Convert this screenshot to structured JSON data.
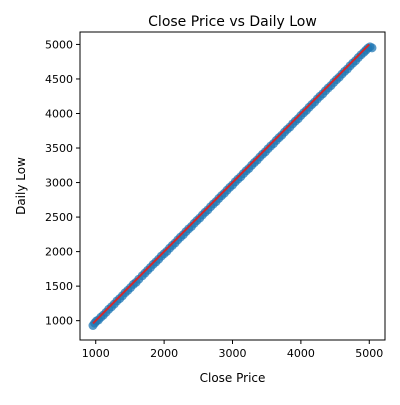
{
  "chart_data": {
    "type": "scatter",
    "title": "Close Price vs Daily Low",
    "xlabel": "Close Price",
    "ylabel": "Daily Low",
    "xlim": [
      770,
      5230
    ],
    "ylim": [
      720,
      5180
    ],
    "xticks": [
      1000,
      2000,
      3000,
      4000,
      5000
    ],
    "yticks": [
      1000,
      1500,
      2000,
      2500,
      3000,
      3500,
      4000,
      4500,
      5000
    ],
    "grid": false,
    "legend": "none",
    "series": [
      {
        "x": [
          960,
          985,
          1010,
          1040,
          1075,
          1110,
          1150,
          1190,
          1230,
          1270,
          1310,
          1350,
          1390,
          1430,
          1470,
          1510,
          1550,
          1590,
          1630,
          1680,
          1720,
          1760,
          1800,
          1840,
          1880,
          1920,
          1960,
          2000,
          2040,
          2080,
          2120,
          2160,
          2200,
          2240,
          2280,
          2320,
          2360,
          2400,
          2440,
          2480,
          2520,
          2560,
          2600,
          2640,
          2680,
          2720,
          2760,
          2800,
          2840,
          2880,
          2920,
          2960,
          3000,
          3040,
          3080,
          3120,
          3160,
          3200,
          3240,
          3280,
          3320,
          3360,
          3400,
          3440,
          3480,
          3520,
          3560,
          3600,
          3640,
          3680,
          3720,
          3760,
          3800,
          3840,
          3880,
          3920,
          3960,
          4000,
          4040,
          4080,
          4120,
          4160,
          4200,
          4240,
          4280,
          4320,
          4360,
          4400,
          4440,
          4480,
          4520,
          4560,
          4600,
          4640,
          4680,
          4720,
          4760,
          4800,
          4840,
          4880,
          4920,
          4950,
          4980,
          5010,
          5040
        ],
        "y": [
          930,
          965,
          995,
          1010,
          1050,
          1080,
          1120,
          1165,
          1200,
          1240,
          1285,
          1320,
          1360,
          1405,
          1440,
          1480,
          1525,
          1555,
          1600,
          1650,
          1690,
          1730,
          1770,
          1815,
          1850,
          1890,
          1935,
          1970,
          2005,
          2050,
          2090,
          2125,
          2170,
          2210,
          2245,
          2290,
          2330,
          2365,
          2410,
          2450,
          2485,
          2530,
          2570,
          2605,
          2650,
          2690,
          2725,
          2770,
          2810,
          2845,
          2890,
          2930,
          2965,
          3010,
          3050,
          3085,
          3130,
          3170,
          3205,
          3250,
          3290,
          3325,
          3370,
          3410,
          3445,
          3490,
          3530,
          3565,
          3610,
          3650,
          3685,
          3730,
          3770,
          3805,
          3850,
          3890,
          3925,
          3970,
          4010,
          4045,
          4090,
          4130,
          4165,
          4210,
          4250,
          4285,
          4330,
          4370,
          4405,
          4450,
          4490,
          4525,
          4570,
          4610,
          4645,
          4690,
          4730,
          4765,
          4810,
          4850,
          4885,
          4915,
          4945,
          4965,
          4950
        ],
        "color": "#1f77b4"
      }
    ],
    "fit_line": {
      "x": [
        960,
        5000
      ],
      "y": [
        960,
        5000
      ],
      "color": "#d62728"
    }
  }
}
